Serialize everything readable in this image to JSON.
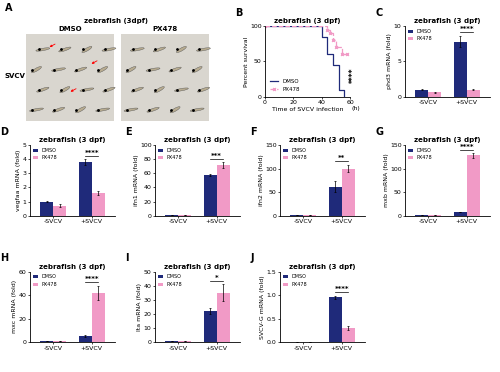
{
  "chart_data": [
    {
      "type": "image",
      "panel": "A",
      "title": "zebrafish (3dpf)",
      "categories": [
        "DMSO",
        "PX478"
      ],
      "row_label": "SVCV"
    },
    {
      "type": "line",
      "panel": "B",
      "title": "zebrafish (3 dpf)",
      "x_label": "Time of SVCV infection",
      "x_unit": "(h)",
      "y_label": "Percent survival",
      "xlim": [
        0,
        60
      ],
      "xticks": [
        0,
        20,
        40,
        60
      ],
      "ylim": [
        0,
        100
      ],
      "yticks": [
        0,
        50,
        100
      ],
      "legend": "lower left",
      "significance": "****",
      "series": [
        {
          "name": "DMSO",
          "color": "#1f2a7a",
          "line_style": "solid",
          "marker": "none",
          "x": [
            0,
            40,
            44,
            48,
            52,
            56
          ],
          "values": [
            100,
            85,
            60,
            45,
            10,
            0
          ]
        },
        {
          "name": "PX478",
          "color": "#f19ac6",
          "line_style": "dashed",
          "marker": "x",
          "x": [
            0,
            44,
            46,
            48,
            50,
            54,
            58
          ],
          "values": [
            100,
            95,
            90,
            80,
            70,
            60,
            60
          ]
        }
      ]
    },
    {
      "type": "bar",
      "panel": "C",
      "title": "zebrafish (3 dpf)",
      "y_label": "phd3 mRNA (fold)",
      "categories": [
        "-SVCV",
        "+SVCV"
      ],
      "ylim": [
        0,
        10
      ],
      "yticks": [
        0,
        5,
        10
      ],
      "legend": "upper left",
      "significance": "****",
      "series": [
        {
          "name": "DMSO",
          "color": "#1f2a7a",
          "values": [
            1.0,
            7.8
          ],
          "errors": [
            0.1,
            0.8
          ]
        },
        {
          "name": "PX478",
          "color": "#f19ac6",
          "values": [
            0.6,
            1.0
          ],
          "errors": [
            0.1,
            0.1
          ]
        }
      ]
    },
    {
      "type": "bar",
      "panel": "D",
      "title": "zebrafish (3 dpf)",
      "y_label": "vegfaa mRNA (fold)",
      "categories": [
        "-SVCV",
        "+SVCV"
      ],
      "ylim": [
        0,
        5
      ],
      "yticks": [
        0,
        1,
        2,
        3,
        4,
        5
      ],
      "legend": "upper left",
      "significance": "****",
      "series": [
        {
          "name": "DMSO",
          "color": "#1f2a7a",
          "values": [
            1.0,
            3.8
          ],
          "errors": [
            0.05,
            0.2
          ]
        },
        {
          "name": "PX478",
          "color": "#f19ac6",
          "values": [
            0.7,
            1.6
          ],
          "errors": [
            0.1,
            0.15
          ]
        }
      ]
    },
    {
      "type": "bar",
      "panel": "E",
      "title": "zebrafish (3 dpf)",
      "y_label": "ifn1 mRNA (fold)",
      "categories": [
        "-SVCV",
        "+SVCV"
      ],
      "ylim": [
        0,
        100
      ],
      "yticks": [
        0,
        20,
        40,
        60,
        80,
        100
      ],
      "legend": "upper left",
      "significance": "***",
      "series": [
        {
          "name": "DMSO",
          "color": "#1f2a7a",
          "values": [
            1,
            58
          ],
          "errors": [
            0.2,
            1.5
          ]
        },
        {
          "name": "PX478",
          "color": "#f19ac6",
          "values": [
            1,
            72
          ],
          "errors": [
            0.2,
            4
          ]
        }
      ]
    },
    {
      "type": "bar",
      "panel": "F",
      "title": "zebrafish (3 dpf)",
      "y_label": "ifn2 mRNA (fold)",
      "categories": [
        "-SVCV",
        "+SVCV"
      ],
      "ylim": [
        0,
        150
      ],
      "yticks": [
        0,
        50,
        100,
        150
      ],
      "legend": "upper left",
      "significance": "**",
      "series": [
        {
          "name": "DMSO",
          "color": "#1f2a7a",
          "values": [
            1,
            62
          ],
          "errors": [
            0.3,
            12
          ]
        },
        {
          "name": "PX478",
          "color": "#f19ac6",
          "values": [
            1,
            100
          ],
          "errors": [
            0.3,
            8
          ]
        }
      ]
    },
    {
      "type": "bar",
      "panel": "G",
      "title": "zebrafish (3 dpf)",
      "y_label": "mxb mRNA (fold)",
      "categories": [
        "-SVCV",
        "+SVCV"
      ],
      "ylim": [
        0,
        150
      ],
      "yticks": [
        0,
        50,
        100,
        150
      ],
      "legend": "upper left",
      "significance": "****",
      "series": [
        {
          "name": "DMSO",
          "color": "#1f2a7a",
          "values": [
            1,
            8
          ],
          "errors": [
            0.2,
            1
          ]
        },
        {
          "name": "PX478",
          "color": "#f19ac6",
          "values": [
            1,
            128
          ],
          "errors": [
            0.2,
            5
          ]
        }
      ]
    },
    {
      "type": "bar",
      "panel": "H",
      "title": "zebrafish (3 dpf)",
      "y_label": "mxc mRNA (fold)",
      "categories": [
        "-SVCV",
        "+SVCV"
      ],
      "ylim": [
        0,
        60
      ],
      "yticks": [
        0,
        20,
        40,
        60
      ],
      "legend": "upper left",
      "significance": "****",
      "series": [
        {
          "name": "DMSO",
          "color": "#1f2a7a",
          "values": [
            1,
            5
          ],
          "errors": [
            0.2,
            0.8
          ]
        },
        {
          "name": "PX478",
          "color": "#f19ac6",
          "values": [
            1,
            42
          ],
          "errors": [
            0.2,
            6
          ]
        }
      ]
    },
    {
      "type": "bar",
      "panel": "I",
      "title": "zebrafish (3 dpf)",
      "y_label": "lta mRNA (fold)",
      "categories": [
        "-SVCV",
        "+SVCV"
      ],
      "ylim": [
        0,
        50
      ],
      "yticks": [
        0,
        10,
        20,
        30,
        40,
        50
      ],
      "legend": "upper left",
      "significance": "*",
      "series": [
        {
          "name": "DMSO",
          "color": "#1f2a7a",
          "values": [
            1,
            22
          ],
          "errors": [
            0.2,
            2
          ]
        },
        {
          "name": "PX478",
          "color": "#f19ac6",
          "values": [
            1,
            35
          ],
          "errors": [
            0.2,
            6
          ]
        }
      ]
    },
    {
      "type": "bar",
      "panel": "J",
      "title": "zebrafish (3 dpf)",
      "y_label": "SVCV-G mRNA (fold)",
      "categories": [
        "-SVCV",
        "+SVCV"
      ],
      "ylim": [
        0.0,
        1.5
      ],
      "yticks": [
        0.0,
        0.5,
        1.0,
        1.5
      ],
      "legend": "upper left",
      "significance": "****",
      "series": [
        {
          "name": "DMSO",
          "color": "#1f2a7a",
          "values": [
            0.0,
            0.95
          ],
          "errors": [
            0.0,
            0.04
          ]
        },
        {
          "name": "PX478",
          "color": "#f19ac6",
          "values": [
            0.0,
            0.3
          ],
          "errors": [
            0.0,
            0.04
          ]
        }
      ]
    }
  ]
}
